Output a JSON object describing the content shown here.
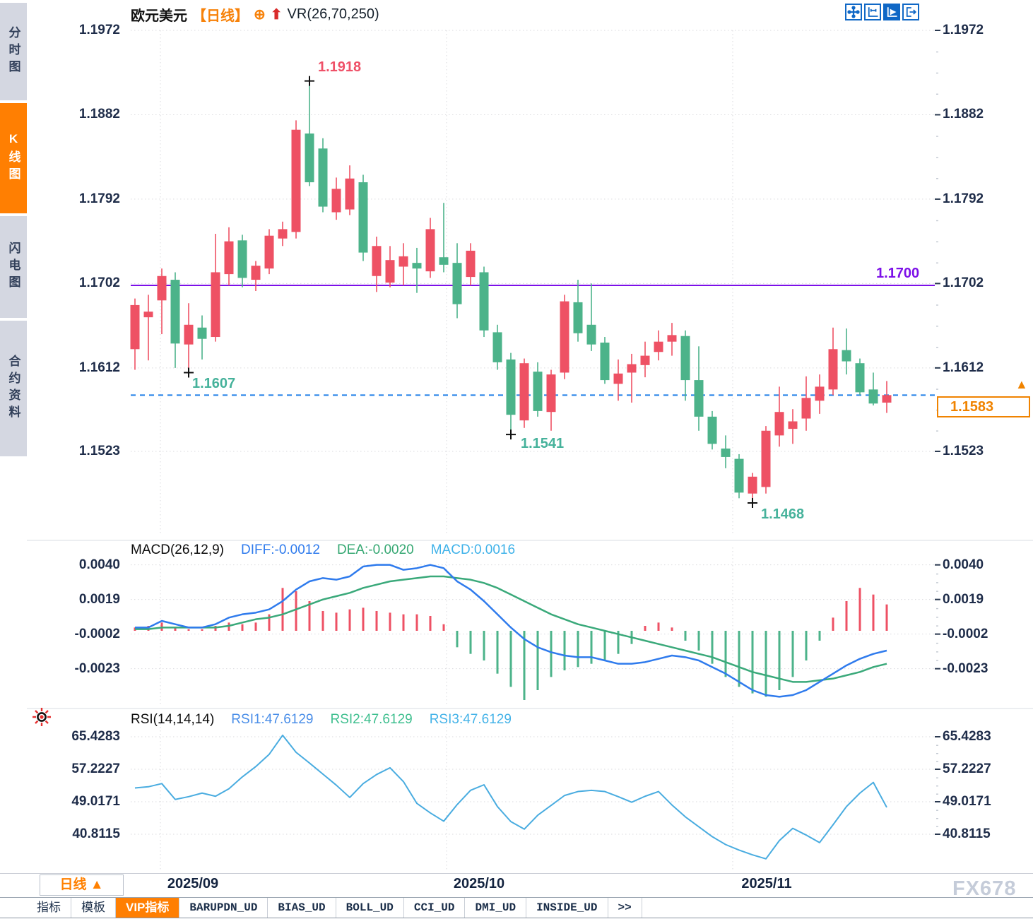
{
  "header": {
    "symbol": "欧元美元",
    "period": "【日线】",
    "add_icon": "⊕",
    "signal_arrow": "⬆",
    "indicator": "VR(26,70,250)"
  },
  "sidebar": {
    "items": [
      {
        "label": "分时图",
        "active": false
      },
      {
        "label": "K线图",
        "active": true
      },
      {
        "label": "闪电图",
        "active": false
      },
      {
        "label": "合约资料",
        "active": false
      }
    ]
  },
  "toolbar": {
    "icons": [
      "crosshair-move",
      "axis-scale",
      "axis-play",
      "exit-right"
    ],
    "active_index": 2
  },
  "annotations": {
    "high": "1.1918",
    "low1": "1.1607",
    "low2": "1.1541",
    "low3": "1.1468",
    "hline_label": "1.1700",
    "last_price": "1.1583",
    "last_arrow": "▲"
  },
  "colors": {
    "up": "#ee5164",
    "down": "#4cb38a",
    "hline": "#7c10e8",
    "last_line": "#1f7fe8",
    "accent_orange": "#ff7f02",
    "diff_line": "#2f7bed",
    "dea_line": "#3aa97a",
    "rsi_line": "#49ace0"
  },
  "xaxis": {
    "labels": [
      "2025/09",
      "2025/10",
      "2025/11"
    ]
  },
  "period_box": {
    "label": "日线",
    "arrow": "▲"
  },
  "tabs": {
    "items": [
      "指标",
      "模板",
      "VIP指标",
      "BARUPDN_UD",
      "BIAS_UD",
      "BOLL_UD",
      "CCI_UD",
      "DMI_UD",
      "INSIDE_UD",
      ">>"
    ],
    "active": "VIP指标"
  },
  "watermark": "FX678",
  "chart_data": [
    {
      "type": "candlestick",
      "title": "欧元美元 日线",
      "y_ticks": [
        "1.1972",
        "1.1882",
        "1.1792",
        "1.1702",
        "1.1612",
        "1.1523"
      ],
      "ylim": [
        1.1433,
        1.1977
      ],
      "support_line": 1.17,
      "last_price": 1.1583,
      "high_label": {
        "value": 1.1918,
        "index": 13
      },
      "low_labels": [
        {
          "value": 1.1607,
          "index": 4
        },
        {
          "value": 1.1541,
          "index": 28
        },
        {
          "value": 1.1468,
          "index": 46
        }
      ],
      "ohlc": [
        [
          1.1632,
          1.1686,
          1.161,
          1.1679
        ],
        [
          1.1666,
          1.169,
          1.162,
          1.1672
        ],
        [
          1.1684,
          1.1718,
          1.1648,
          1.171
        ],
        [
          1.1706,
          1.1714,
          1.1612,
          1.1638
        ],
        [
          1.1637,
          1.1681,
          1.1607,
          1.1658
        ],
        [
          1.1655,
          1.1668,
          1.1621,
          1.1643
        ],
        [
          1.1645,
          1.1755,
          1.164,
          1.1714
        ],
        [
          1.1712,
          1.1762,
          1.17,
          1.1747
        ],
        [
          1.1748,
          1.1754,
          1.1698,
          1.1708
        ],
        [
          1.1706,
          1.1726,
          1.1694,
          1.1721
        ],
        [
          1.1718,
          1.176,
          1.1712,
          1.1753
        ],
        [
          1.175,
          1.1768,
          1.1742,
          1.176
        ],
        [
          1.1757,
          1.1876,
          1.175,
          1.1866
        ],
        [
          1.1862,
          1.1918,
          1.1806,
          1.181
        ],
        [
          1.1846,
          1.1857,
          1.1778,
          1.1784
        ],
        [
          1.1778,
          1.1815,
          1.177,
          1.1803
        ],
        [
          1.1781,
          1.1828,
          1.1775,
          1.1814
        ],
        [
          1.181,
          1.1818,
          1.1726,
          1.1735
        ],
        [
          1.171,
          1.1752,
          1.1693,
          1.1742
        ],
        [
          1.1703,
          1.1742,
          1.1698,
          1.1727
        ],
        [
          1.172,
          1.1745,
          1.17,
          1.1731
        ],
        [
          1.1724,
          1.174,
          1.1692,
          1.1718
        ],
        [
          1.1715,
          1.1772,
          1.1708,
          1.176
        ],
        [
          1.173,
          1.1788,
          1.1714,
          1.1722
        ],
        [
          1.1724,
          1.1745,
          1.1665,
          1.168
        ],
        [
          1.1709,
          1.1745,
          1.17,
          1.1737
        ],
        [
          1.1714,
          1.172,
          1.1645,
          1.1652
        ],
        [
          1.165,
          1.1658,
          1.161,
          1.1618
        ],
        [
          1.1621,
          1.1628,
          1.1541,
          1.1562
        ],
        [
          1.1556,
          1.1622,
          1.1548,
          1.1617
        ],
        [
          1.1608,
          1.1618,
          1.156,
          1.1566
        ],
        [
          1.1565,
          1.161,
          1.1545,
          1.1605
        ],
        [
          1.1607,
          1.169,
          1.16,
          1.1683
        ],
        [
          1.1682,
          1.1706,
          1.164,
          1.1649
        ],
        [
          1.1658,
          1.1702,
          1.163,
          1.1637
        ],
        [
          1.1639,
          1.1645,
          1.1595,
          1.1599
        ],
        [
          1.1595,
          1.1621,
          1.1577,
          1.1606
        ],
        [
          1.1607,
          1.1627,
          1.1575,
          1.1616
        ],
        [
          1.1615,
          1.164,
          1.1602,
          1.1625
        ],
        [
          1.1629,
          1.1652,
          1.162,
          1.164
        ],
        [
          1.164,
          1.166,
          1.1625,
          1.1647
        ],
        [
          1.1646,
          1.1652,
          1.1577,
          1.1599
        ],
        [
          1.1599,
          1.1635,
          1.1545,
          1.156
        ],
        [
          1.156,
          1.1566,
          1.1525,
          1.1531
        ],
        [
          1.1526,
          1.154,
          1.1505,
          1.1517
        ],
        [
          1.1515,
          1.152,
          1.1473,
          1.1479
        ],
        [
          1.1478,
          1.15,
          1.1468,
          1.1496
        ],
        [
          1.1485,
          1.155,
          1.1478,
          1.1545
        ],
        [
          1.154,
          1.1592,
          1.1528,
          1.1565
        ],
        [
          1.1547,
          1.1568,
          1.1531,
          1.1555
        ],
        [
          1.1558,
          1.1603,
          1.1545,
          1.158
        ],
        [
          1.1577,
          1.1605,
          1.1563,
          1.1592
        ],
        [
          1.1589,
          1.1655,
          1.1583,
          1.1632
        ],
        [
          1.1631,
          1.1654,
          1.1605,
          1.1619
        ],
        [
          1.1617,
          1.1622,
          1.1583,
          1.1586
        ],
        [
          1.1589,
          1.1607,
          1.1572,
          1.1574
        ],
        [
          1.1575,
          1.1598,
          1.1564,
          1.1583
        ]
      ]
    },
    {
      "type": "macd",
      "title": "MACD(26,12,9)",
      "labels": {
        "diff": "DIFF:-0.0012",
        "dea": "DEA:-0.0020",
        "macd": "MACD:0.0016"
      },
      "y_ticks": [
        "0.0040",
        "0.0019",
        "-0.0002",
        "-0.0023"
      ],
      "diff": [
        0.0002,
        0.0002,
        0.0006,
        0.0004,
        0.0002,
        0.0002,
        0.0004,
        0.0008,
        0.001,
        0.0011,
        0.0013,
        0.0018,
        0.0025,
        0.003,
        0.0032,
        0.0031,
        0.0033,
        0.0039,
        0.004,
        0.004,
        0.0037,
        0.0038,
        0.004,
        0.0038,
        0.003,
        0.0025,
        0.0018,
        0.001,
        0.0002,
        -0.0005,
        -0.001,
        -0.0013,
        -0.0015,
        -0.0016,
        -0.0016,
        -0.0018,
        -0.002,
        -0.002,
        -0.0019,
        -0.0017,
        -0.0015,
        -0.0016,
        -0.0018,
        -0.0022,
        -0.0026,
        -0.0031,
        -0.0036,
        -0.0039,
        -0.004,
        -0.0039,
        -0.0036,
        -0.0031,
        -0.0026,
        -0.0021,
        -0.0017,
        -0.0014,
        -0.0012
      ],
      "dea": [
        0.0001,
        0.0001,
        0.0002,
        0.0002,
        0.0002,
        0.0002,
        0.0002,
        0.0003,
        0.0005,
        0.0007,
        0.0008,
        0.001,
        0.0013,
        0.0016,
        0.0019,
        0.0021,
        0.0023,
        0.0026,
        0.0028,
        0.003,
        0.0031,
        0.0032,
        0.0033,
        0.0033,
        0.0032,
        0.0031,
        0.0029,
        0.0026,
        0.0022,
        0.0018,
        0.0014,
        0.001,
        0.0007,
        0.0004,
        0.0002,
        0.0,
        -0.0002,
        -0.0004,
        -0.0006,
        -0.0008,
        -0.001,
        -0.0012,
        -0.0014,
        -0.0016,
        -0.0019,
        -0.0022,
        -0.0025,
        -0.0027,
        -0.0029,
        -0.0031,
        -0.0031,
        -0.003,
        -0.0029,
        -0.0027,
        -0.0025,
        -0.0022,
        -0.002
      ],
      "hist": [
        0.0002,
        0.0003,
        0.0005,
        0.0002,
        0.0001,
        0.0001,
        0.0003,
        0.0005,
        0.0004,
        0.0005,
        0.001,
        0.0026,
        0.0024,
        0.0018,
        0.0012,
        0.0011,
        0.0013,
        0.0014,
        0.0012,
        0.0011,
        0.001,
        0.001,
        0.0009,
        0.0004,
        -0.001,
        -0.0014,
        -0.0018,
        -0.0026,
        -0.0034,
        -0.0042,
        -0.0036,
        -0.0028,
        -0.0024,
        -0.0022,
        -0.002,
        -0.0018,
        -0.0014,
        -0.0008,
        0.0003,
        0.0005,
        0.0002,
        -0.0006,
        -0.0012,
        -0.002,
        -0.0028,
        -0.0034,
        -0.0038,
        -0.004,
        -0.0036,
        -0.0028,
        -0.0018,
        -0.0006,
        0.0008,
        0.0018,
        0.0026,
        0.0022,
        0.0016
      ]
    },
    {
      "type": "rsi",
      "title": "RSI(14,14,14)",
      "labels": {
        "rsi1": "RSI1:47.6129",
        "rsi2": "RSI2:47.6129",
        "rsi3": "RSI3:47.6129"
      },
      "y_ticks": [
        "65.4283",
        "57.2227",
        "49.0171",
        "40.8115"
      ],
      "rsi": [
        52.5,
        52.8,
        53.6,
        49.6,
        50.3,
        51.2,
        50.4,
        52.3,
        55.3,
        57.9,
        61.0,
        65.8,
        61.5,
        58.8,
        56.0,
        53.2,
        50.1,
        53.6,
        55.9,
        57.6,
        54.1,
        48.6,
        46.2,
        44.1,
        48.3,
        51.9,
        53.3,
        47.8,
        44.0,
        42.1,
        45.6,
        48.1,
        50.6,
        51.6,
        51.9,
        51.6,
        50.3,
        48.9,
        50.4,
        51.6,
        48.2,
        45.2,
        42.7,
        40.2,
        38.2,
        36.8,
        35.6,
        34.6,
        39.2,
        42.3,
        40.6,
        38.7,
        43.2,
        47.8,
        51.2,
        53.9,
        47.6
      ]
    }
  ]
}
